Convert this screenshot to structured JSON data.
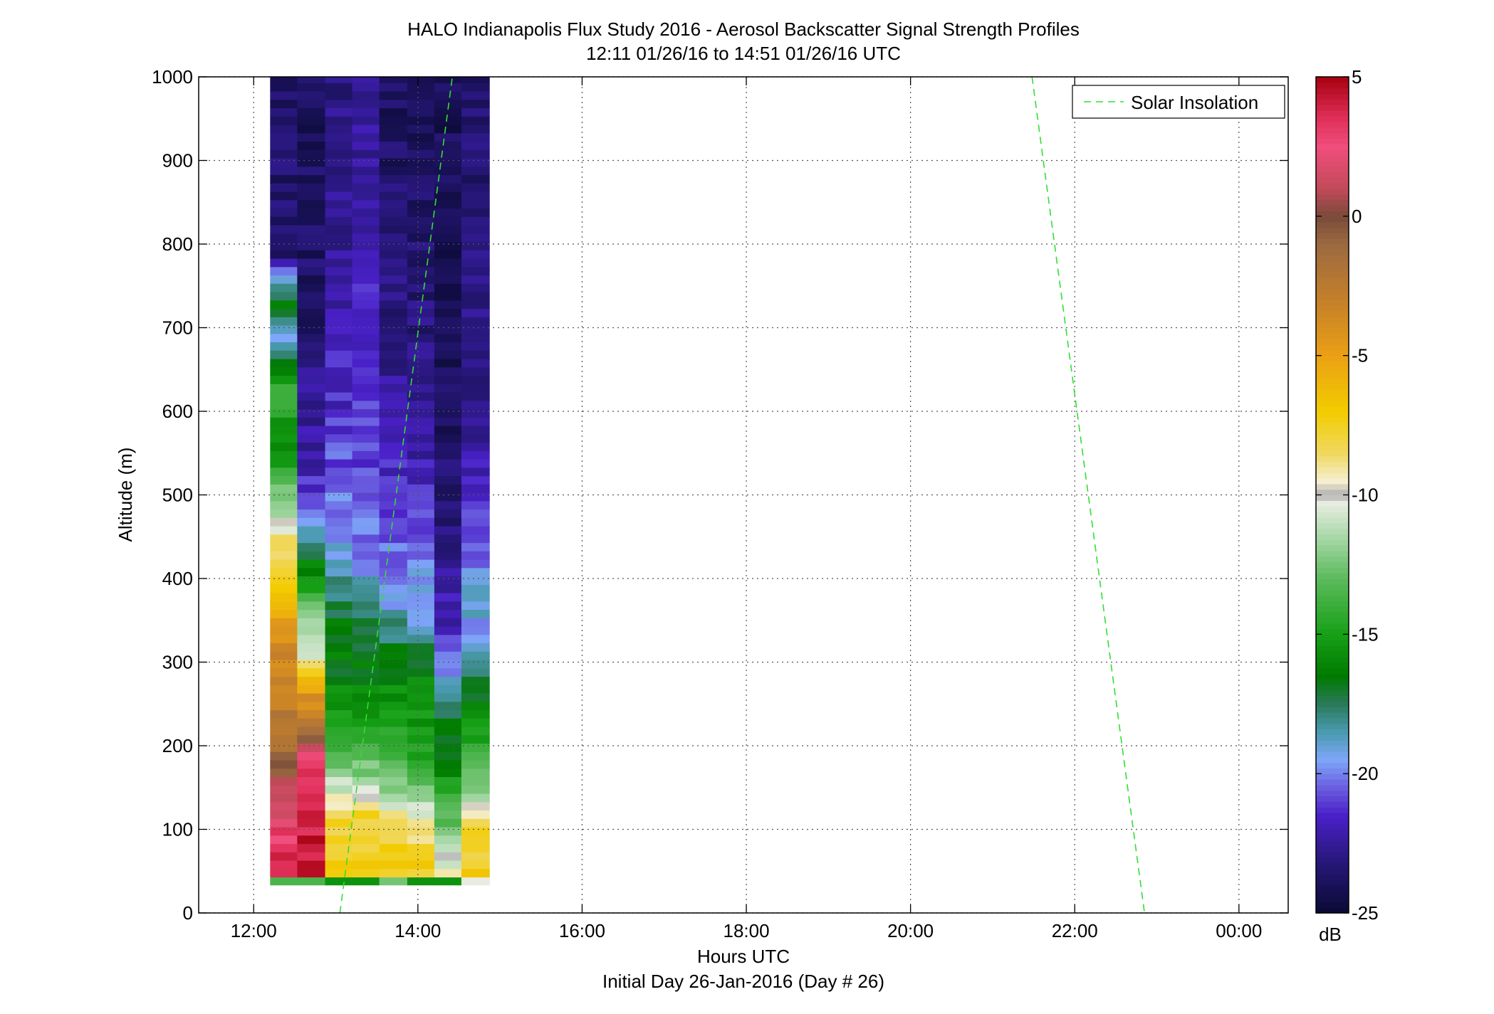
{
  "chart_data": {
    "type": "heatmap",
    "title": "HALO Indianapolis Flux Study 2016 - Aerosol Backscatter Signal Strength Profiles",
    "subtitle": "12:11 01/26/16 to 14:51 01/26/16  UTC",
    "xlabel": "Hours UTC",
    "xlabel2": "Initial Day 26-Jan-2016 (Day # 26)",
    "ylabel": "Altitude (m)",
    "xlim_hours": [
      11.33,
      24.6
    ],
    "ylim": [
      0,
      1000
    ],
    "x_ticks": [
      12,
      14,
      16,
      18,
      20,
      22,
      24
    ],
    "x_tick_labels": [
      "12:00",
      "14:00",
      "16:00",
      "18:00",
      "20:00",
      "22:00",
      "00:00"
    ],
    "y_ticks": [
      0,
      100,
      200,
      300,
      400,
      500,
      600,
      700,
      800,
      900,
      1000
    ],
    "y_tick_labels": [
      "0",
      "100",
      "200",
      "300",
      "400",
      "500",
      "600",
      "700",
      "800",
      "900",
      "1000"
    ],
    "grid": true,
    "legend_position": "top-right",
    "legend": [
      {
        "name": "Solar Insolation",
        "style": "dashed",
        "color": "#33dd33"
      }
    ],
    "colorbar": {
      "unit": "dB",
      "range": [
        -25,
        5
      ],
      "ticks": [
        5,
        0,
        -5,
        -10,
        -15,
        -20,
        -25
      ],
      "tick_labels": [
        "5",
        "0",
        "-5",
        "-10",
        "-15",
        "-20",
        "-25"
      ],
      "colormap": [
        [
          -25,
          "#0a0a33"
        ],
        [
          -23,
          "#2a1880"
        ],
        [
          -21.5,
          "#4a20c8"
        ],
        [
          -20.5,
          "#6a5ee0"
        ],
        [
          -19.5,
          "#7ea6f8"
        ],
        [
          -18.5,
          "#4a9ab0"
        ],
        [
          -17.5,
          "#2a7a5a"
        ],
        [
          -16.5,
          "#007a00"
        ],
        [
          -15,
          "#16a016"
        ],
        [
          -13,
          "#5cba5c"
        ],
        [
          -11.5,
          "#a8d8a8"
        ],
        [
          -10.3,
          "#e8ece0"
        ],
        [
          -10,
          "#b0b0b0"
        ],
        [
          -9.5,
          "#f5eed0"
        ],
        [
          -8.5,
          "#f0d860"
        ],
        [
          -7,
          "#f2cc00"
        ],
        [
          -5,
          "#eba014"
        ],
        [
          -3,
          "#c47f2a"
        ],
        [
          -1,
          "#9c6a40"
        ],
        [
          0,
          "#7a4a3a"
        ],
        [
          1,
          "#c24a5a"
        ],
        [
          2.5,
          "#f04e7c"
        ],
        [
          3.5,
          "#e0305a"
        ],
        [
          5,
          "#a80010"
        ]
      ]
    },
    "heatmap": {
      "time_start_hours": [
        12.2,
        12.53,
        12.87,
        13.2,
        13.53,
        13.87,
        14.2,
        14.53
      ],
      "time_end_hours": 14.87,
      "altitude_start": 33,
      "altitude_step": 10,
      "profiles": [
        {
          "bottom": -13.5,
          "anchors": [
            [
              33,
              3.0
            ],
            [
              60,
              3.5
            ],
            [
              90,
              3.0
            ],
            [
              130,
              1.5
            ],
            [
              170,
              -0.5
            ],
            [
              220,
              -2.5
            ],
            [
              280,
              -3.0
            ],
            [
              330,
              -4.5
            ],
            [
              380,
              -7.0
            ],
            [
              420,
              -8.0
            ],
            [
              450,
              -9.5
            ],
            [
              480,
              -11.5
            ],
            [
              520,
              -14.0
            ],
            [
              570,
              -16.0
            ],
            [
              610,
              -13.0
            ],
            [
              650,
              -17.0
            ],
            [
              680,
              -19.5
            ],
            [
              720,
              -16.5
            ],
            [
              760,
              -20.0
            ],
            [
              780,
              -23.5
            ],
            [
              1000,
              -23.5
            ]
          ]
        },
        {
          "bottom": -13.5,
          "anchors": [
            [
              33,
              4.5
            ],
            [
              110,
              4.0
            ],
            [
              180,
              3.0
            ],
            [
              200,
              0.0
            ],
            [
              230,
              -3.0
            ],
            [
              260,
              -4.5
            ],
            [
              285,
              -7.0
            ],
            [
              300,
              -10.5
            ],
            [
              320,
              -11.5
            ],
            [
              370,
              -13.0
            ],
            [
              400,
              -16.0
            ],
            [
              440,
              -17.5
            ],
            [
              460,
              -19.5
            ],
            [
              490,
              -21.0
            ],
            [
              540,
              -22.0
            ],
            [
              600,
              -22.5
            ],
            [
              700,
              -23.5
            ],
            [
              1000,
              -24.0
            ]
          ]
        },
        {
          "bottom": -15.5,
          "anchors": [
            [
              33,
              -7.0
            ],
            [
              110,
              -8.0
            ],
            [
              130,
              -9.5
            ],
            [
              150,
              -11.0
            ],
            [
              180,
              -13.0
            ],
            [
              230,
              -15.0
            ],
            [
              280,
              -16.5
            ],
            [
              330,
              -16.5
            ],
            [
              370,
              -17.5
            ],
            [
              420,
              -19.0
            ],
            [
              470,
              -20.0
            ],
            [
              520,
              -20.5
            ],
            [
              600,
              -21.5
            ],
            [
              700,
              -22.0
            ],
            [
              800,
              -22.5
            ],
            [
              1000,
              -23.0
            ]
          ]
        },
        {
          "bottom": -15.5,
          "anchors": [
            [
              33,
              -7.0
            ],
            [
              120,
              -8.0
            ],
            [
              140,
              -10.2
            ],
            [
              160,
              -12.0
            ],
            [
              200,
              -14.0
            ],
            [
              260,
              -16.0
            ],
            [
              320,
              -17.0
            ],
            [
              370,
              -18.5
            ],
            [
              420,
              -20.0
            ],
            [
              480,
              -20.5
            ],
            [
              560,
              -21.0
            ],
            [
              650,
              -21.5
            ],
            [
              800,
              -22.0
            ],
            [
              1000,
              -22.5
            ]
          ]
        },
        {
          "bottom": -12.5,
          "anchors": [
            [
              33,
              -7.0
            ],
            [
              110,
              -8.5
            ],
            [
              130,
              -11.0
            ],
            [
              150,
              -12.5
            ],
            [
              200,
              -14.0
            ],
            [
              260,
              -15.5
            ],
            [
              310,
              -17.0
            ],
            [
              360,
              -19.0
            ],
            [
              410,
              -20.0
            ],
            [
              460,
              -21.0
            ],
            [
              560,
              -22.0
            ],
            [
              700,
              -23.0
            ],
            [
              1000,
              -24.0
            ]
          ]
        },
        {
          "bottom": -15.5,
          "anchors": [
            [
              33,
              -7.0
            ],
            [
              90,
              -8.5
            ],
            [
              110,
              -10.0
            ],
            [
              130,
              -12.0
            ],
            [
              180,
              -14.5
            ],
            [
              240,
              -15.5
            ],
            [
              300,
              -16.5
            ],
            [
              330,
              -18.5
            ],
            [
              380,
              -19.5
            ],
            [
              420,
              -20.0
            ],
            [
              470,
              -21.0
            ],
            [
              520,
              -22.0
            ],
            [
              650,
              -23.0
            ],
            [
              800,
              -23.5
            ],
            [
              1000,
              -24.0
            ]
          ]
        },
        {
          "bottom": -15.5,
          "anchors": [
            [
              33,
              -9.5
            ],
            [
              60,
              -10.5
            ],
            [
              90,
              -12.5
            ],
            [
              130,
              -14.0
            ],
            [
              160,
              -15.5
            ],
            [
              200,
              -16.5
            ],
            [
              240,
              -17.5
            ],
            [
              270,
              -19.0
            ],
            [
              300,
              -20.5
            ],
            [
              350,
              -22.0
            ],
            [
              400,
              -22.5
            ],
            [
              500,
              -23.5
            ],
            [
              650,
              -24.0
            ],
            [
              1000,
              -24.0
            ]
          ]
        },
        {
          "bottom": -10.3,
          "anchors": [
            [
              33,
              -7.0
            ],
            [
              100,
              -8.0
            ],
            [
              120,
              -10.0
            ],
            [
              140,
              -11.5
            ],
            [
              170,
              -13.5
            ],
            [
              220,
              -15.5
            ],
            [
              270,
              -17.0
            ],
            [
              300,
              -18.0
            ],
            [
              330,
              -19.5
            ],
            [
              380,
              -19.0
            ],
            [
              430,
              -20.5
            ],
            [
              480,
              -21.5
            ],
            [
              560,
              -22.5
            ],
            [
              700,
              -23.0
            ],
            [
              1000,
              -23.5
            ]
          ]
        }
      ]
    },
    "solar_insolation_lines": [
      {
        "points": [
          [
            13.05,
            0
          ],
          [
            14.42,
            1000
          ]
        ]
      },
      {
        "points": [
          [
            21.48,
            1000
          ],
          [
            22.85,
            0
          ]
        ]
      }
    ]
  }
}
